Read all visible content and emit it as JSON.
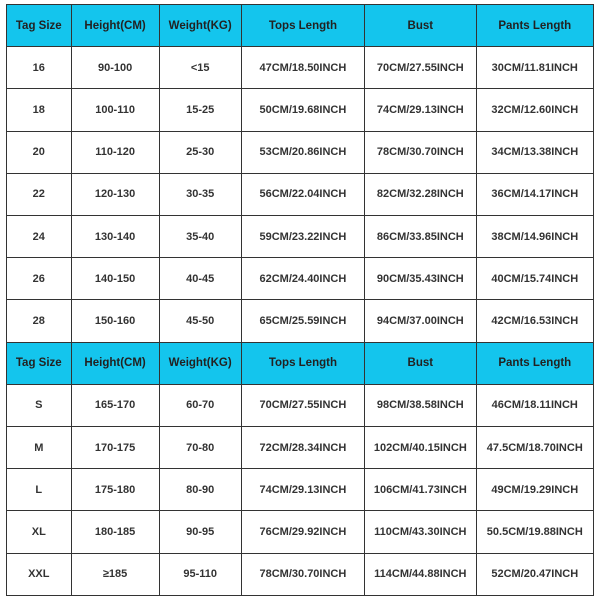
{
  "col_widths": [
    "11%",
    "15%",
    "14%",
    "21%",
    "19%",
    "20%"
  ],
  "header_bg": "#14c5ed",
  "row_bg": "#ffffff",
  "border_color": "#333333",
  "columns": [
    "Tag Size",
    "Height(CM)",
    "Weight(KG)",
    "Tops Length",
    "Bust",
    "Pants Length"
  ],
  "tables": [
    {
      "header": [
        "Tag Size",
        "Height(CM)",
        "Weight(KG)",
        "Tops Length",
        "Bust",
        "Pants Length"
      ],
      "rows": [
        [
          "16",
          "90-100",
          "<15",
          "47CM/18.50INCH",
          "70CM/27.55INCH",
          "30CM/11.81INCH"
        ],
        [
          "18",
          "100-110",
          "15-25",
          "50CM/19.68INCH",
          "74CM/29.13INCH",
          "32CM/12.60INCH"
        ],
        [
          "20",
          "110-120",
          "25-30",
          "53CM/20.86INCH",
          "78CM/30.70INCH",
          "34CM/13.38INCH"
        ],
        [
          "22",
          "120-130",
          "30-35",
          "56CM/22.04INCH",
          "82CM/32.28INCH",
          "36CM/14.17INCH"
        ],
        [
          "24",
          "130-140",
          "35-40",
          "59CM/23.22INCH",
          "86CM/33.85INCH",
          "38CM/14.96INCH"
        ],
        [
          "26",
          "140-150",
          "40-45",
          "62CM/24.40INCH",
          "90CM/35.43INCH",
          "40CM/15.74INCH"
        ],
        [
          "28",
          "150-160",
          "45-50",
          "65CM/25.59INCH",
          "94CM/37.00INCH",
          "42CM/16.53INCH"
        ]
      ]
    },
    {
      "header": [
        "Tag Size",
        "Height(CM)",
        "Weight(KG)",
        "Tops Length",
        "Bust",
        "Pants Length"
      ],
      "rows": [
        [
          "S",
          "165-170",
          "60-70",
          "70CM/27.55INCH",
          "98CM/38.58INCH",
          "46CM/18.11INCH"
        ],
        [
          "M",
          "170-175",
          "70-80",
          "72CM/28.34INCH",
          "102CM/40.15INCH",
          "47.5CM/18.70INCH"
        ],
        [
          "L",
          "175-180",
          "80-90",
          "74CM/29.13INCH",
          "106CM/41.73INCH",
          "49CM/19.29INCH"
        ],
        [
          "XL",
          "180-185",
          "90-95",
          "76CM/29.92INCH",
          "110CM/43.30INCH",
          "50.5CM/19.88INCH"
        ],
        [
          "XXL",
          "≥185",
          "95-110",
          "78CM/30.70INCH",
          "114CM/44.88INCH",
          "52CM/20.47INCH"
        ]
      ]
    }
  ]
}
